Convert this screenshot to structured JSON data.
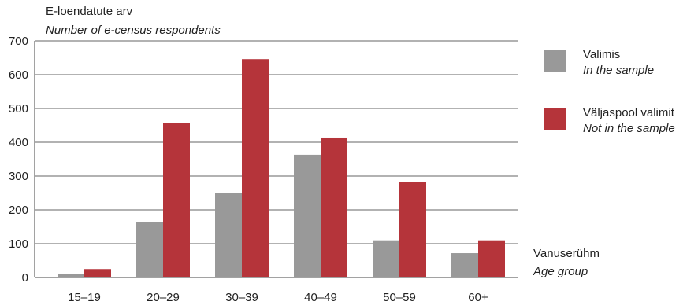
{
  "chart_data": {
    "type": "bar",
    "categories": [
      "15–19",
      "20–29",
      "30–39",
      "40–49",
      "50–59",
      "60+"
    ],
    "series": [
      {
        "name": "Valimis",
        "name_en": "In the sample",
        "color": "#999999",
        "values": [
          10,
          163,
          250,
          363,
          110,
          72
        ]
      },
      {
        "name": "Väljaspool valimit",
        "name_en": "Not in the sample",
        "color": "#b5343a",
        "values": [
          25,
          458,
          646,
          414,
          283,
          110
        ]
      }
    ],
    "ylabel": "E-loendatute arv",
    "ylabel_en": "Number of e-census respondents",
    "xlabel": "Vanuserühm",
    "xlabel_en": "Age group",
    "ylim": [
      0,
      700
    ],
    "yticks": [
      0,
      100,
      200,
      300,
      400,
      500,
      600,
      700
    ],
    "grid": true,
    "legend_position": "right"
  }
}
